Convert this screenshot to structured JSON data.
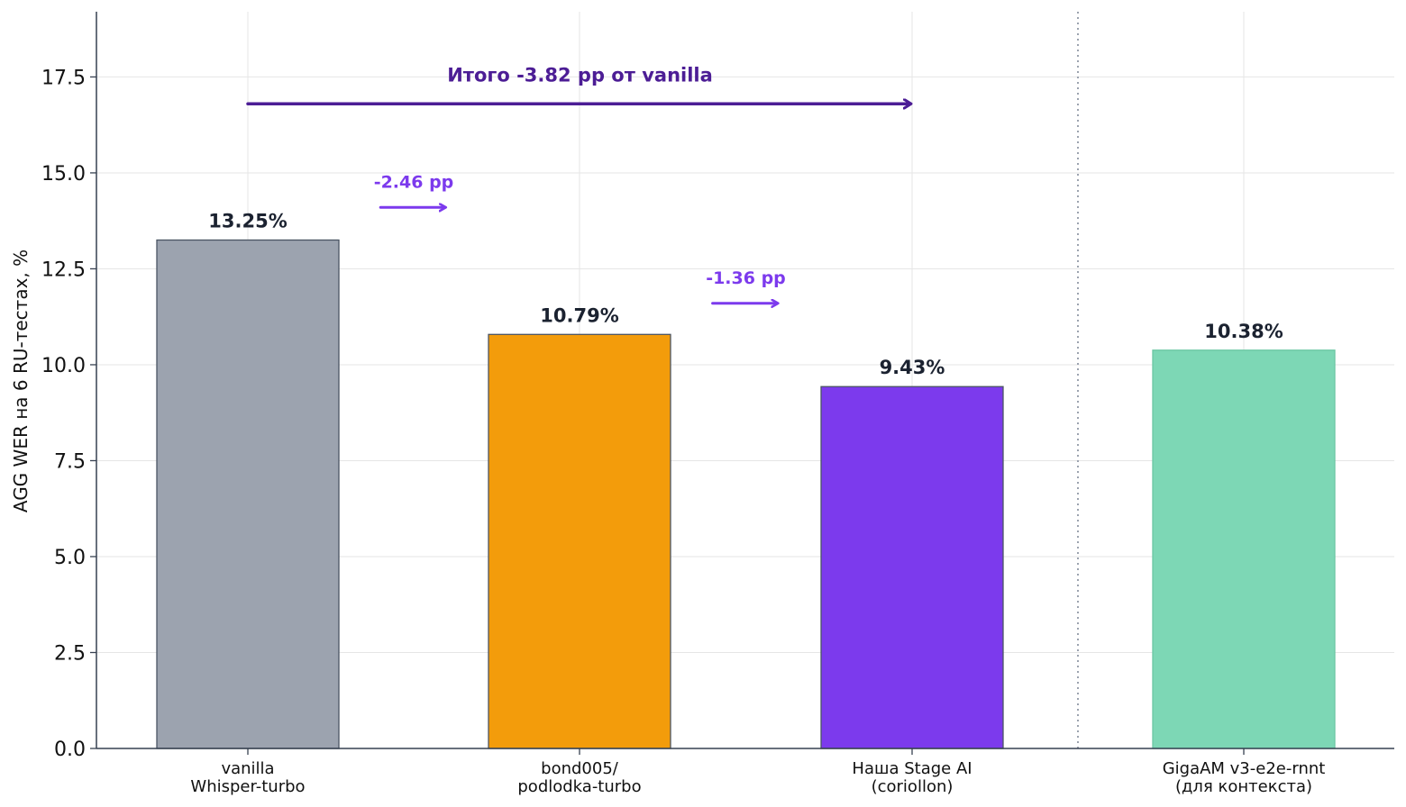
{
  "chart_data": {
    "type": "bar",
    "categories": [
      [
        "vanilla",
        "Whisper-turbo"
      ],
      [
        "bond005/",
        "podlodka-turbo"
      ],
      [
        "Наша Stage AI",
        "(coriollon)"
      ],
      [
        "GigaAM v3-e2e-rnnt",
        "(для контекста)"
      ]
    ],
    "values": [
      13.25,
      10.79,
      9.43,
      10.38
    ],
    "value_labels": [
      "13.25%",
      "10.79%",
      "9.43%",
      "10.38%"
    ],
    "colors": [
      "#9ca3af",
      "#f39c0b",
      "#7c3aed",
      "#7dd7b5"
    ],
    "edge_colors": [
      "#4b5563",
      "#4b5563",
      "#4b5563",
      "#6cc7a3"
    ],
    "ylabel": "AGG WER на 6 RU-тестах, %",
    "ylim": [
      0,
      19.2
    ],
    "yticks": [
      0.0,
      2.5,
      5.0,
      7.5,
      10.0,
      12.5,
      15.0,
      17.5
    ],
    "ytick_labels": [
      "0.0",
      "2.5",
      "5.0",
      "7.5",
      "10.0",
      "12.5",
      "15.0",
      "17.5"
    ],
    "grid": true,
    "separator_after_category": 2,
    "annotations": [
      {
        "text": "-2.46 pp",
        "from_category": 0.4,
        "to_category": 0.6,
        "y": 14.1,
        "color": "#7c3aed",
        "style": "small"
      },
      {
        "text": "-1.36 pp",
        "from_category": 1.4,
        "to_category": 1.6,
        "y": 11.6,
        "color": "#7c3aed",
        "style": "small"
      },
      {
        "text": "Итого -3.82 pp от vanilla",
        "from_category": 0.0,
        "to_category": 2.0,
        "y": 16.8,
        "color": "#4c1d95",
        "style": "big"
      }
    ]
  }
}
